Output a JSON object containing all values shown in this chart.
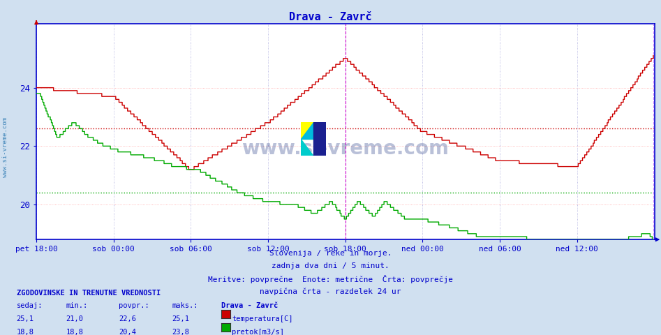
{
  "title": "Drava - Zavrč",
  "title_color": "#0000cc",
  "bg_color": "#d0e0f0",
  "plot_bg_color": "#ffffff",
  "ylim": [
    18.8,
    26.2
  ],
  "yticks": [
    20,
    22,
    24
  ],
  "xtick_labels": [
    "pet 18:00",
    "sob 00:00",
    "sob 06:00",
    "sob 12:00",
    "sob 18:00",
    "ned 00:00",
    "ned 06:00",
    "ned 12:00"
  ],
  "xtick_positions": [
    0,
    72,
    144,
    216,
    288,
    360,
    432,
    504
  ],
  "temp_avg_line": 22.6,
  "flow_avg_line": 20.4,
  "footnote_lines": [
    "Slovenija / reke in morje.",
    "zadnja dva dni / 5 minut.",
    "Meritve: povprečne  Enote: metrične  Črta: povprečje",
    "navpična črta - razdelek 24 ur"
  ],
  "table_header": "ZGODOVINSKE IN TRENUTNE VREDNOSTI",
  "table_cols": [
    "sedaj:",
    "min.:",
    "povpr.:",
    "maks.:"
  ],
  "table_station": "Drava - Zavrč",
  "table_rows": [
    {
      "values": [
        "25,1",
        "21,0",
        "22,6",
        "25,1"
      ],
      "label": "temperatura[C]",
      "color": "#cc0000"
    },
    {
      "values": [
        "18,8",
        "18,8",
        "20,4",
        "23,8"
      ],
      "label": "pretok[m3/s]",
      "color": "#00aa00"
    }
  ],
  "grid_h_color": "#ffaaaa",
  "grid_v_color": "#aaaadd",
  "temp_color": "#cc0000",
  "flow_color": "#00aa00",
  "axis_color": "#0000cc",
  "sidewatermark_color": "#4488bb",
  "vline_color": "#cc00cc",
  "vline2_color": "#cc88ff"
}
